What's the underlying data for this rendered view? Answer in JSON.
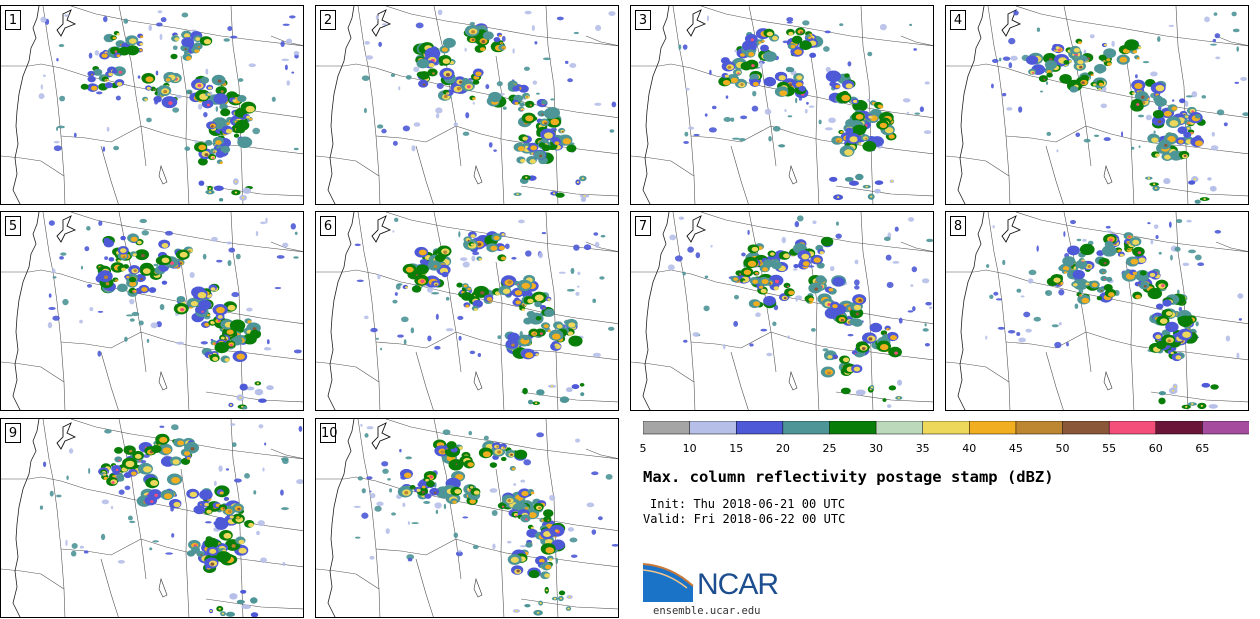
{
  "panels": [
    {
      "label": "1"
    },
    {
      "label": "2"
    },
    {
      "label": "3"
    },
    {
      "label": "4"
    },
    {
      "label": "5"
    },
    {
      "label": "6"
    },
    {
      "label": "7"
    },
    {
      "label": "8"
    },
    {
      "label": "9"
    },
    {
      "label": "10"
    }
  ],
  "legend": {
    "ticks": [
      "5",
      "10",
      "15",
      "20",
      "25",
      "30",
      "35",
      "40",
      "45",
      "50",
      "55",
      "60",
      "65"
    ],
    "colors": [
      "#a5a5a5",
      "#b6bfe8",
      "#4d59d6",
      "#4e9597",
      "#087d08",
      "#bcd9bc",
      "#edd85c",
      "#f0ae20",
      "#bd8631",
      "#8a5839",
      "#f44f7a",
      "#6b1638",
      "#a54c9f"
    ]
  },
  "title": "Max. column reflectivity postage stamp (dBZ)",
  "init": "Init: Thu 2018-06-21 00 UTC",
  "valid": "Valid: Fri 2018-06-22 00 UTC",
  "logo_text": "NCAR",
  "url": "ensemble.ucar.edu"
}
